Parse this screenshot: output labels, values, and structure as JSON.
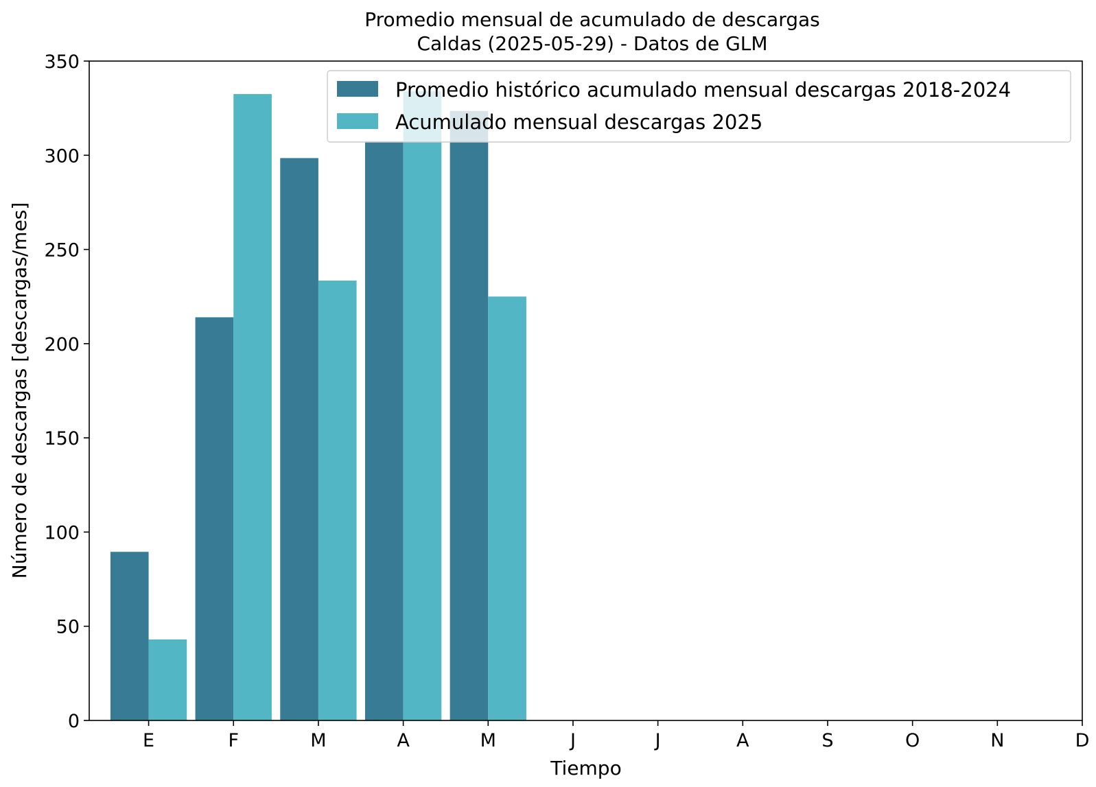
{
  "chart_data": {
    "type": "bar",
    "title": "Promedio mensual de acumulado de descargas",
    "subtitle": "Caldas (2025-05-29) - Datos de GLM",
    "xlabel": "Tiempo",
    "ylabel": "Número de descargas [descargas/mes]",
    "categories": [
      "E",
      "F",
      "M",
      "A",
      "M",
      "J",
      "J",
      "A",
      "S",
      "O",
      "N",
      "D"
    ],
    "series": [
      {
        "name": "Promedio histórico acumulado mensual descargas 2018-2024",
        "color": "#377b94",
        "values": [
          89.5,
          214,
          298.5,
          307.5,
          323.5,
          null,
          null,
          null,
          null,
          null,
          null,
          null
        ]
      },
      {
        "name": "Acumulado mensual descargas 2025",
        "color": "#52b6c5",
        "values": [
          43,
          332.5,
          233.5,
          334,
          225,
          null,
          null,
          null,
          null,
          null,
          null,
          null
        ]
      }
    ],
    "ylim": [
      0,
      350
    ],
    "yticks": [
      0,
      50,
      100,
      150,
      200,
      250,
      300,
      350
    ],
    "legend_position": "top-right",
    "grid": false
  }
}
